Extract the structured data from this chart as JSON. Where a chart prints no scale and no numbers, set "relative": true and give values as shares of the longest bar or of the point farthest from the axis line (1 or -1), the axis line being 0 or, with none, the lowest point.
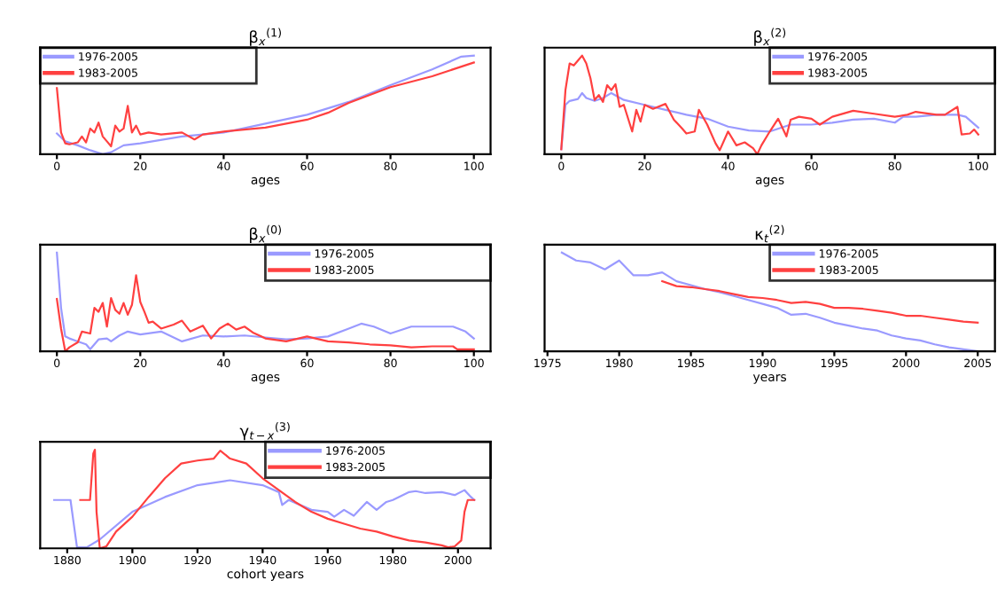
{
  "chart_data": [
    {
      "type": "line",
      "title": "β$_{x}$$^{(1)}$",
      "xlabel": "ages",
      "xlim": [
        -4,
        104
      ],
      "xticks": [
        0,
        20,
        40,
        60,
        80,
        100
      ],
      "relative": true,
      "legend": "top left",
      "series": [
        {
          "name": "1976-2005",
          "color": "#9a9aff",
          "x": [
            0,
            2,
            5,
            8,
            11,
            13,
            16,
            20,
            30,
            40,
            50,
            60,
            70,
            80,
            90,
            97,
            100
          ],
          "values": [
            0.21,
            0.13,
            0.09,
            0.04,
            0,
            0.02,
            0.09,
            0.11,
            0.18,
            0.22,
            0.31,
            0.4,
            0.53,
            0.7,
            0.86,
            0.99,
            1
          ]
        },
        {
          "name": "1983-2005",
          "color": "#ff4040",
          "x": [
            0,
            1,
            2,
            3,
            5,
            6,
            7,
            8,
            9,
            10,
            11,
            12,
            13,
            14,
            15,
            16,
            17,
            18,
            19,
            20,
            22,
            25,
            30,
            33,
            35,
            40,
            50,
            60,
            65,
            70,
            80,
            90,
            100
          ],
          "values": [
            0.67,
            0.22,
            0.11,
            0.1,
            0.12,
            0.18,
            0.12,
            0.26,
            0.22,
            0.32,
            0.18,
            0.13,
            0.08,
            0.29,
            0.23,
            0.26,
            0.49,
            0.22,
            0.29,
            0.2,
            0.22,
            0.2,
            0.22,
            0.15,
            0.2,
            0.23,
            0.27,
            0.35,
            0.42,
            0.52,
            0.68,
            0.79,
            0.93
          ]
        }
      ]
    },
    {
      "type": "line",
      "title": "β$_{x}$$^{(2)}$",
      "xlabel": "ages",
      "xlim": [
        -4,
        104
      ],
      "xticks": [
        0,
        20,
        40,
        60,
        80,
        100
      ],
      "relative": true,
      "legend": "top right",
      "series": [
        {
          "name": "1976-2005",
          "color": "#9a9aff",
          "x": [
            0,
            1,
            2,
            4,
            5,
            6,
            8,
            10,
            12,
            15,
            20,
            25,
            30,
            35,
            40,
            45,
            50,
            55,
            60,
            65,
            70,
            75,
            80,
            82,
            85,
            90,
            95,
            97,
            100
          ],
          "values": [
            0.05,
            0.5,
            0.54,
            0.56,
            0.62,
            0.57,
            0.54,
            0.57,
            0.62,
            0.55,
            0.5,
            0.45,
            0.4,
            0.36,
            0.28,
            0.24,
            0.23,
            0.3,
            0.3,
            0.32,
            0.35,
            0.36,
            0.32,
            0.38,
            0.38,
            0.4,
            0.4,
            0.38,
            0.27
          ]
        },
        {
          "name": "1983-2005",
          "color": "#ff4040",
          "x": [
            0,
            1,
            2,
            3,
            4,
            5,
            6,
            7,
            8,
            9,
            10,
            11,
            12,
            13,
            14,
            15,
            17,
            18,
            19,
            20,
            22,
            25,
            27,
            29,
            30,
            32,
            33,
            35,
            37,
            38,
            40,
            42,
            44,
            46,
            47,
            48,
            50,
            52,
            54,
            55,
            57,
            60,
            62,
            65,
            70,
            75,
            80,
            83,
            85,
            90,
            92,
            95,
            96,
            98,
            99,
            100
          ],
          "values": [
            0.05,
            0.65,
            0.92,
            0.9,
            0.95,
            1,
            0.92,
            0.77,
            0.55,
            0.6,
            0.53,
            0.7,
            0.65,
            0.71,
            0.48,
            0.5,
            0.23,
            0.45,
            0.33,
            0.5,
            0.46,
            0.51,
            0.35,
            0.26,
            0.21,
            0.23,
            0.45,
            0.3,
            0.11,
            0.04,
            0.23,
            0.09,
            0.12,
            0.06,
            0,
            0.09,
            0.23,
            0.36,
            0.18,
            0.35,
            0.38,
            0.36,
            0.3,
            0.38,
            0.44,
            0.41,
            0.38,
            0.4,
            0.43,
            0.4,
            0.4,
            0.48,
            0.2,
            0.21,
            0.25,
            0.2
          ]
        }
      ]
    },
    {
      "type": "line",
      "title": "β$_{x}$$^{(0)}$",
      "xlabel": "ages",
      "xlim": [
        -4,
        104
      ],
      "xticks": [
        0,
        20,
        40,
        60,
        80,
        100
      ],
      "relative": true,
      "legend": "top right",
      "series": [
        {
          "name": "1976-2005",
          "color": "#9a9aff",
          "x": [
            0,
            1,
            2,
            3,
            5,
            7,
            8,
            10,
            12,
            13,
            15,
            17,
            20,
            25,
            30,
            35,
            40,
            45,
            50,
            55,
            60,
            65,
            70,
            73,
            76,
            80,
            85,
            90,
            95,
            98,
            100
          ],
          "values": [
            1,
            0.44,
            0.15,
            0.13,
            0.1,
            0.07,
            0.02,
            0.12,
            0.13,
            0.1,
            0.16,
            0.2,
            0.17,
            0.2,
            0.1,
            0.16,
            0.15,
            0.16,
            0.14,
            0.12,
            0.13,
            0.15,
            0.23,
            0.28,
            0.25,
            0.18,
            0.25,
            0.25,
            0.25,
            0.2,
            0.13
          ]
        },
        {
          "name": "1983-2005",
          "color": "#ff4040",
          "x": [
            0,
            1,
            2,
            3,
            5,
            6,
            8,
            9,
            10,
            11,
            12,
            13,
            14,
            15,
            16,
            17,
            18,
            19,
            20,
            21,
            22,
            23,
            25,
            28,
            30,
            32,
            35,
            37,
            39,
            41,
            43,
            45,
            47,
            49,
            50,
            55,
            60,
            65,
            70,
            75,
            80,
            85,
            90,
            95,
            96,
            100
          ],
          "values": [
            0.53,
            0.23,
            0,
            0.04,
            0.09,
            0.2,
            0.18,
            0.44,
            0.4,
            0.49,
            0.25,
            0.54,
            0.42,
            0.38,
            0.49,
            0.37,
            0.47,
            0.77,
            0.5,
            0.4,
            0.29,
            0.3,
            0.23,
            0.27,
            0.31,
            0.2,
            0.26,
            0.13,
            0.23,
            0.28,
            0.22,
            0.25,
            0.19,
            0.15,
            0.13,
            0.1,
            0.15,
            0.1,
            0.09,
            0.07,
            0.06,
            0.04,
            0.05,
            0.05,
            0.02,
            0.02
          ]
        }
      ]
    },
    {
      "type": "line",
      "title": "κ$_{t}$$^{(2)}$",
      "xlabel": "years",
      "xlim": [
        1974.8,
        2006.2
      ],
      "xticks": [
        1975,
        1980,
        1985,
        1990,
        1995,
        2000,
        2005
      ],
      "relative": true,
      "legend": "top right",
      "series": [
        {
          "name": "1976-2005",
          "color": "#9a9aff",
          "x": [
            1976,
            1977,
            1978,
            1979,
            1980,
            1981,
            1982,
            1983,
            1984,
            1985,
            1986,
            1987,
            1988,
            1989,
            1990,
            1991,
            1992,
            1993,
            1994,
            1995,
            1996,
            1997,
            1998,
            1999,
            2000,
            2001,
            2002,
            2003,
            2004,
            2005
          ],
          "values": [
            1,
            0.92,
            0.9,
            0.83,
            0.92,
            0.77,
            0.77,
            0.8,
            0.71,
            0.67,
            0.63,
            0.6,
            0.56,
            0.52,
            0.48,
            0.44,
            0.37,
            0.38,
            0.34,
            0.29,
            0.26,
            0.23,
            0.21,
            0.16,
            0.13,
            0.11,
            0.07,
            0.04,
            0.02,
            0
          ]
        },
        {
          "name": "1983-2005",
          "color": "#ff4040",
          "x": [
            1983,
            1984,
            1985,
            1986,
            1987,
            1988,
            1989,
            1990,
            1991,
            1992,
            1993,
            1994,
            1995,
            1996,
            1997,
            1998,
            1999,
            2000,
            2001,
            2002,
            2003,
            2004,
            2005
          ],
          "values": [
            0.71,
            0.66,
            0.65,
            0.63,
            0.61,
            0.58,
            0.55,
            0.54,
            0.52,
            0.49,
            0.5,
            0.48,
            0.44,
            0.44,
            0.43,
            0.41,
            0.39,
            0.36,
            0.36,
            0.34,
            0.32,
            0.3,
            0.29
          ]
        }
      ]
    },
    {
      "type": "line",
      "title": "γ$_{t−x}$$^{(3)}$",
      "xlabel": "cohort years",
      "xlim": [
        1871.7,
        2010
      ],
      "xticks": [
        1880,
        1900,
        1920,
        1940,
        1960,
        1980,
        2000
      ],
      "relative": true,
      "legend": "top right",
      "series": [
        {
          "name": "1976-2005",
          "color": "#9a9aff",
          "x": [
            1876,
            1881,
            1883,
            1886,
            1890,
            1900,
            1910,
            1920,
            1930,
            1940,
            1945,
            1946,
            1948,
            1955,
            1960,
            1962,
            1965,
            1968,
            1972,
            1975,
            1978,
            1980,
            1985,
            1987,
            1990,
            1995,
            1999,
            2002,
            2004,
            2005
          ],
          "values": [
            0.49,
            0.49,
            0.01,
            0.01,
            0.09,
            0.37,
            0.52,
            0.64,
            0.69,
            0.64,
            0.57,
            0.44,
            0.49,
            0.39,
            0.37,
            0.32,
            0.39,
            0.33,
            0.47,
            0.39,
            0.47,
            0.49,
            0.57,
            0.58,
            0.56,
            0.57,
            0.54,
            0.59,
            0.52,
            0.49
          ]
        },
        {
          "name": "1983-2005",
          "color": "#ff4040",
          "x": [
            1884,
            1887,
            1888,
            1888.5,
            1889,
            1890,
            1892,
            1895,
            1900,
            1905,
            1910,
            1915,
            1920,
            1925,
            1927,
            1930,
            1935,
            1940,
            1945,
            1950,
            1955,
            1960,
            1965,
            1970,
            1975,
            1980,
            1985,
            1990,
            1995,
            1997,
            1999,
            2001,
            2002,
            2003,
            2005
          ],
          "values": [
            0.49,
            0.49,
            0.96,
            1,
            0.37,
            0,
            0.02,
            0.17,
            0.32,
            0.52,
            0.71,
            0.86,
            0.89,
            0.91,
            0.99,
            0.91,
            0.86,
            0.71,
            0.59,
            0.47,
            0.37,
            0.3,
            0.25,
            0.2,
            0.17,
            0.12,
            0.08,
            0.06,
            0.03,
            0.01,
            0.02,
            0.08,
            0.37,
            0.49,
            0.49
          ]
        }
      ]
    }
  ]
}
